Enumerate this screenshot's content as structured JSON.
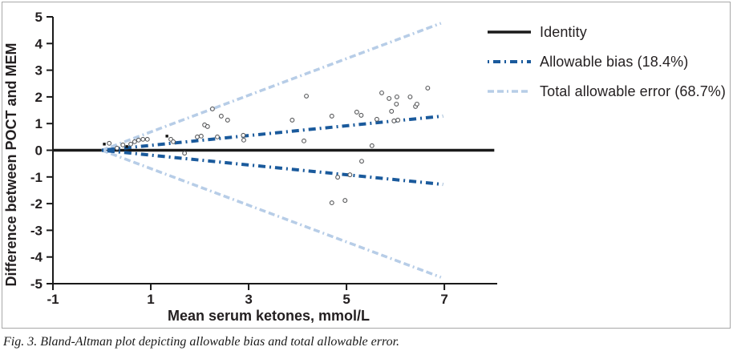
{
  "figure": {
    "caption": "Fig. 3. Bland-Altman plot depicting allowable bias and total allowable error."
  },
  "chart_data": {
    "type": "scatter",
    "title": "",
    "xlabel": "Mean serum ketones, mmol/L",
    "ylabel": "Difference between POCT and MEM",
    "xlim": [
      -1,
      8.08
    ],
    "ylim": [
      -5,
      5
    ],
    "x_ticks": [
      -1,
      1,
      3,
      5,
      7
    ],
    "y_ticks": [
      -5,
      -4,
      -3,
      -2,
      -1,
      0,
      1,
      2,
      3,
      4,
      5
    ],
    "grid": false,
    "style": {
      "identity_color": "#1a1a1a",
      "bias_color": "#1a5a9c",
      "tae_color": "#b7cde7",
      "marker_stroke": "#58595b",
      "axis_color": "#1a1a1a"
    },
    "legend": {
      "position": "top-right",
      "entries": [
        {
          "label": "Identity",
          "style": "solid",
          "color": "#1a1a1a"
        },
        {
          "label": "Allowable bias (18.4%)",
          "style": "dash-dot",
          "color": "#1a5a9c"
        },
        {
          "label": "Total allowable error (68.7%)",
          "style": "dash-dash-dot",
          "color": "#b7cde7"
        }
      ]
    },
    "lines": [
      {
        "name": "identity",
        "series": "Identity",
        "points": [
          [
            -1,
            0
          ],
          [
            8.02,
            0
          ]
        ]
      },
      {
        "name": "allowable-bias-upper",
        "series": "Allowable bias (18.4%)",
        "slope_pct": 18.4,
        "points": [
          [
            0,
            0
          ],
          [
            6.97,
            1.28
          ]
        ]
      },
      {
        "name": "allowable-bias-lower",
        "series": "Allowable bias (18.4%)",
        "slope_pct": -18.4,
        "points": [
          [
            0,
            0
          ],
          [
            6.97,
            -1.28
          ]
        ]
      },
      {
        "name": "total-allowable-error-upper",
        "series": "Total allowable error (68.7%)",
        "slope_pct": 68.7,
        "points": [
          [
            0,
            0
          ],
          [
            6.93,
            4.76
          ]
        ]
      },
      {
        "name": "total-allowable-error-lower",
        "series": "Total allowable error (68.7%)",
        "slope_pct": -68.7,
        "points": [
          [
            0,
            0
          ],
          [
            6.93,
            -4.76
          ]
        ]
      }
    ],
    "scatter_points_open": [
      [
        0.15,
        0.26
      ],
      [
        0.31,
        0.08
      ],
      [
        0.43,
        0.2
      ],
      [
        0.59,
        0.23
      ],
      [
        0.67,
        0.32
      ],
      [
        0.75,
        0.38
      ],
      [
        0.84,
        0.41
      ],
      [
        0.93,
        0.41
      ],
      [
        1.41,
        0.41
      ],
      [
        1.46,
        0.32
      ],
      [
        1.69,
        -0.11
      ],
      [
        1.95,
        0.5
      ],
      [
        2.03,
        0.53
      ],
      [
        2.1,
        0.95
      ],
      [
        2.16,
        0.89
      ],
      [
        2.26,
        1.55
      ],
      [
        2.36,
        0.5
      ],
      [
        2.44,
        1.28
      ],
      [
        2.57,
        1.13
      ],
      [
        2.89,
        0.56
      ],
      [
        2.9,
        0.38
      ],
      [
        3.89,
        1.13
      ],
      [
        4.13,
        0.35
      ],
      [
        4.18,
        2.03
      ],
      [
        4.7,
        1.28
      ],
      [
        4.7,
        -1.97
      ],
      [
        4.82,
        -1.01
      ],
      [
        4.97,
        -1.88
      ],
      [
        5.07,
        -0.92
      ],
      [
        5.21,
        1.43
      ],
      [
        5.3,
        1.31
      ],
      [
        5.31,
        -0.41
      ],
      [
        5.52,
        0.17
      ],
      [
        5.62,
        1.16
      ],
      [
        5.72,
        2.15
      ],
      [
        5.87,
        1.94
      ],
      [
        5.92,
        1.46
      ],
      [
        5.97,
        1.1
      ],
      [
        6.02,
        1.73
      ],
      [
        6.03,
        2.0
      ],
      [
        6.05,
        1.13
      ],
      [
        6.3,
        2.0
      ],
      [
        6.41,
        1.64
      ],
      [
        6.44,
        1.73
      ],
      [
        6.66,
        2.33
      ]
    ],
    "scatter_points_filled": [
      [
        0.05,
        0.23
      ],
      [
        0.51,
        0.14
      ],
      [
        1.33,
        0.53
      ]
    ]
  }
}
